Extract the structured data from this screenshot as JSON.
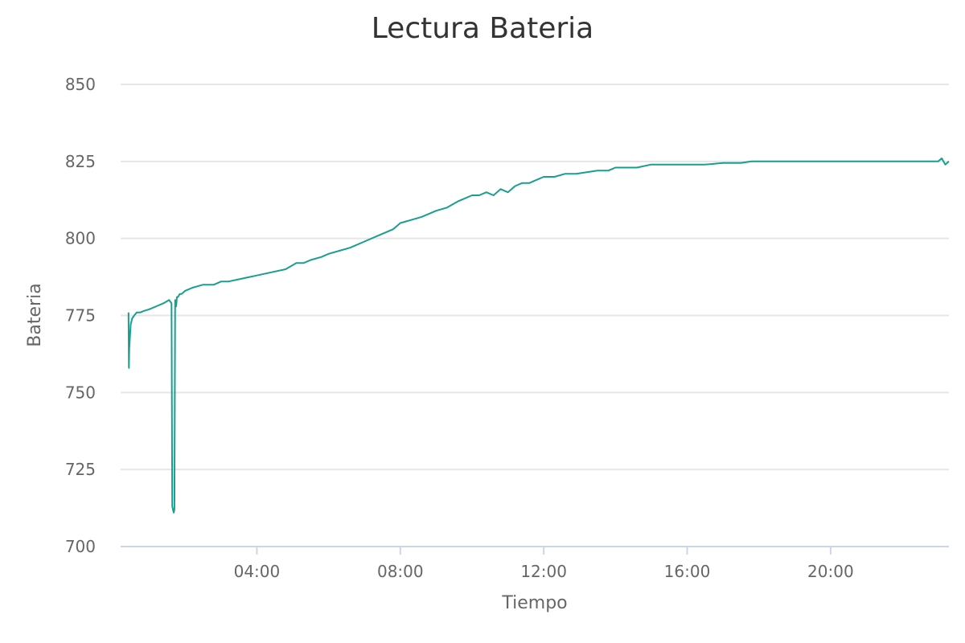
{
  "chart_data": {
    "type": "line",
    "title": "Lectura Bateria",
    "xlabel": "Tiempo",
    "ylabel": "Bateria",
    "ylim": [
      700,
      850
    ],
    "yticks": [
      700,
      725,
      750,
      775,
      800,
      825,
      850
    ],
    "xlim": [
      0.2,
      23.3
    ],
    "xticks": [
      {
        "value": 4,
        "label": "04:00"
      },
      {
        "value": 8,
        "label": "08:00"
      },
      {
        "value": 12,
        "label": "12:00"
      },
      {
        "value": 16,
        "label": "16:00"
      },
      {
        "value": 20,
        "label": "20:00"
      }
    ],
    "grid": true,
    "legend": "none",
    "series": [
      {
        "color": "#1a9e8f",
        "x": [
          0.42,
          0.43,
          0.44,
          0.46,
          0.48,
          0.52,
          0.58,
          0.65,
          0.75,
          0.85,
          1.0,
          1.2,
          1.4,
          1.55,
          1.62,
          1.64,
          1.66,
          1.68,
          1.7,
          1.72,
          1.75,
          1.77,
          1.8,
          1.85,
          1.9,
          2.0,
          2.2,
          2.5,
          2.8,
          3.0,
          3.2,
          3.6,
          3.8,
          4.0,
          4.4,
          4.8,
          5.1,
          5.3,
          5.5,
          5.8,
          6.0,
          6.3,
          6.6,
          7.0,
          7.4,
          7.8,
          8.0,
          8.3,
          8.6,
          9.0,
          9.3,
          9.6,
          9.8,
          10.0,
          10.2,
          10.4,
          10.6,
          10.8,
          11.0,
          11.2,
          11.4,
          11.6,
          11.8,
          12.0,
          12.3,
          12.6,
          12.9,
          13.2,
          13.5,
          13.8,
          14.0,
          14.3,
          14.6,
          15.0,
          15.2,
          15.5,
          16.0,
          16.5,
          17.0,
          17.5,
          17.8,
          18.5,
          19.0,
          19.5,
          20.0,
          20.2,
          20.5,
          21.0,
          21.5,
          22.0,
          22.5,
          23.0,
          23.1,
          23.2,
          23.3
        ],
        "y": [
          776,
          758,
          764,
          768,
          772,
          774,
          775,
          776,
          776,
          776.5,
          777,
          778,
          779,
          780,
          779,
          713,
          712,
          711,
          712,
          780,
          778,
          781,
          781,
          782,
          782,
          783,
          784,
          785,
          785,
          786,
          786,
          787,
          787.5,
          788,
          789,
          790,
          792,
          792,
          793,
          794,
          795,
          796,
          797,
          799,
          801,
          803,
          805,
          806,
          807,
          809,
          810,
          812,
          813,
          814,
          814,
          815,
          814,
          816,
          815,
          817,
          818,
          818,
          819,
          820,
          820,
          821,
          821,
          821.5,
          822,
          822,
          823,
          823,
          823,
          824,
          824,
          824,
          824,
          824,
          824.5,
          824.5,
          825,
          825,
          825,
          825,
          825,
          825,
          825,
          825,
          825,
          825,
          825,
          825,
          826,
          824,
          825
        ]
      }
    ]
  }
}
